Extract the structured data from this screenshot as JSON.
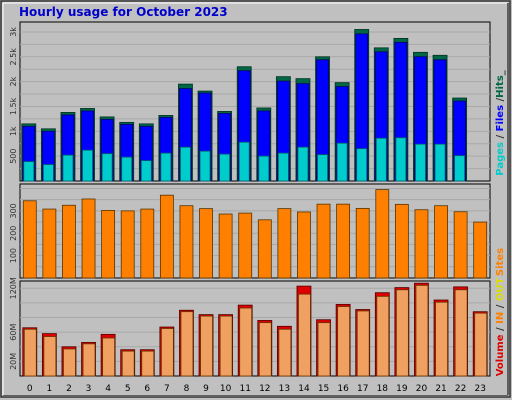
{
  "title": "Hourly usage for October 2023",
  "colors": {
    "background": "#c0c0c0",
    "title": "#0000cc",
    "pages": "#00cccc",
    "files": "#0000ff",
    "hits": "#006644",
    "sites": "#ff8000",
    "volume": "#dd0000",
    "in": "#ff8000",
    "out": "#dddd00",
    "volume_out_fill": "#f0a060"
  },
  "legends": {
    "top": [
      {
        "text": "Pages",
        "color": "#00cccc"
      },
      {
        "text": " / ",
        "color": "#333333"
      },
      {
        "text": "Files",
        "color": "#0000ff"
      },
      {
        "text": " /",
        "color": "#333333"
      },
      {
        "text": "Hits",
        "color": "#006644"
      },
      {
        "text": "_",
        "color": "#333333"
      }
    ],
    "middle": [
      {
        "text": "Sites",
        "color": "#ff8000"
      }
    ],
    "bottom": [
      {
        "text": "Volume",
        "color": "#dd0000"
      },
      {
        "text": " / ",
        "color": "#333333"
      },
      {
        "text": "IN",
        "color": "#ff8000"
      },
      {
        "text": " / ",
        "color": "#333333"
      },
      {
        "text": "OUT",
        "color": "#dddd00"
      }
    ]
  },
  "chart_data": [
    {
      "type": "bar",
      "name": "hits-files-pages",
      "categories": [
        "0",
        "1",
        "2",
        "3",
        "4",
        "5",
        "6",
        "7",
        "8",
        "9",
        "10",
        "11",
        "12",
        "13",
        "14",
        "15",
        "16",
        "17",
        "18",
        "19",
        "20",
        "21",
        "22",
        "23"
      ],
      "ylim": [
        0,
        3200
      ],
      "ytick_labels": [
        "500",
        "1k",
        "1.5k",
        "2k",
        "2.5k",
        "3k"
      ],
      "yticks": [
        500,
        1000,
        1500,
        2000,
        2500,
        3000
      ],
      "series": [
        {
          "name": "Hits",
          "values": [
            1150,
            1050,
            1380,
            1460,
            1290,
            1180,
            1150,
            1320,
            1950,
            1810,
            1400,
            2300,
            1470,
            2100,
            2060,
            2500,
            1980,
            3050,
            2680,
            2870,
            2590,
            2530,
            1670,
            0
          ]
        },
        {
          "name": "Files",
          "values": [
            1100,
            1000,
            1330,
            1410,
            1240,
            1140,
            1100,
            1280,
            1860,
            1770,
            1360,
            2220,
            1410,
            2010,
            1960,
            2440,
            1900,
            2960,
            2600,
            2790,
            2500,
            2440,
            1610,
            0
          ]
        },
        {
          "name": "Pages",
          "values": [
            390,
            330,
            520,
            620,
            550,
            480,
            410,
            560,
            680,
            600,
            540,
            780,
            500,
            560,
            680,
            530,
            760,
            650,
            860,
            870,
            740,
            740,
            510,
            0
          ]
        }
      ],
      "ylabel": "Pages / Files /Hits_"
    },
    {
      "type": "bar",
      "name": "sites",
      "categories": [
        "0",
        "1",
        "2",
        "3",
        "4",
        "5",
        "6",
        "7",
        "8",
        "9",
        "10",
        "11",
        "12",
        "13",
        "14",
        "15",
        "16",
        "17",
        "18",
        "19",
        "20",
        "21",
        "22",
        "23"
      ],
      "ylim": [
        0,
        420
      ],
      "ytick_labels": [
        "100",
        "200",
        "300"
      ],
      "yticks": [
        100,
        200,
        300
      ],
      "series": [
        {
          "name": "Sites",
          "values": [
            345,
            308,
            325,
            353,
            302,
            300,
            308,
            370,
            323,
            310,
            286,
            290,
            260,
            310,
            295,
            330,
            330,
            311,
            395,
            329,
            305,
            323,
            296,
            250
          ]
        }
      ],
      "ylabel": "Sites"
    },
    {
      "type": "bar",
      "name": "volume",
      "categories": [
        "0",
        "1",
        "2",
        "3",
        "4",
        "5",
        "6",
        "7",
        "8",
        "9",
        "10",
        "11",
        "12",
        "13",
        "14",
        "15",
        "16",
        "17",
        "18",
        "19",
        "20",
        "21",
        "22",
        "23"
      ],
      "ylim": [
        0,
        130
      ],
      "ytick_labels": [
        "20M",
        "60M",
        "120M"
      ],
      "yticks": [
        20,
        60,
        120
      ],
      "series": [
        {
          "name": "Volume",
          "values": [
            66,
            58,
            40,
            46,
            57,
            36,
            36,
            67,
            90,
            84,
            84,
            97,
            76,
            68,
            123,
            77,
            98,
            91,
            114,
            121,
            127,
            104,
            122,
            88
          ]
        },
        {
          "name": "OUT",
          "values": [
            64,
            54,
            37,
            44,
            52,
            34,
            34,
            65,
            88,
            82,
            82,
            93,
            73,
            64,
            112,
            73,
            95,
            89,
            109,
            118,
            124,
            101,
            118,
            86
          ]
        }
      ],
      "ylabel": "Volume / IN / OUT"
    }
  ]
}
